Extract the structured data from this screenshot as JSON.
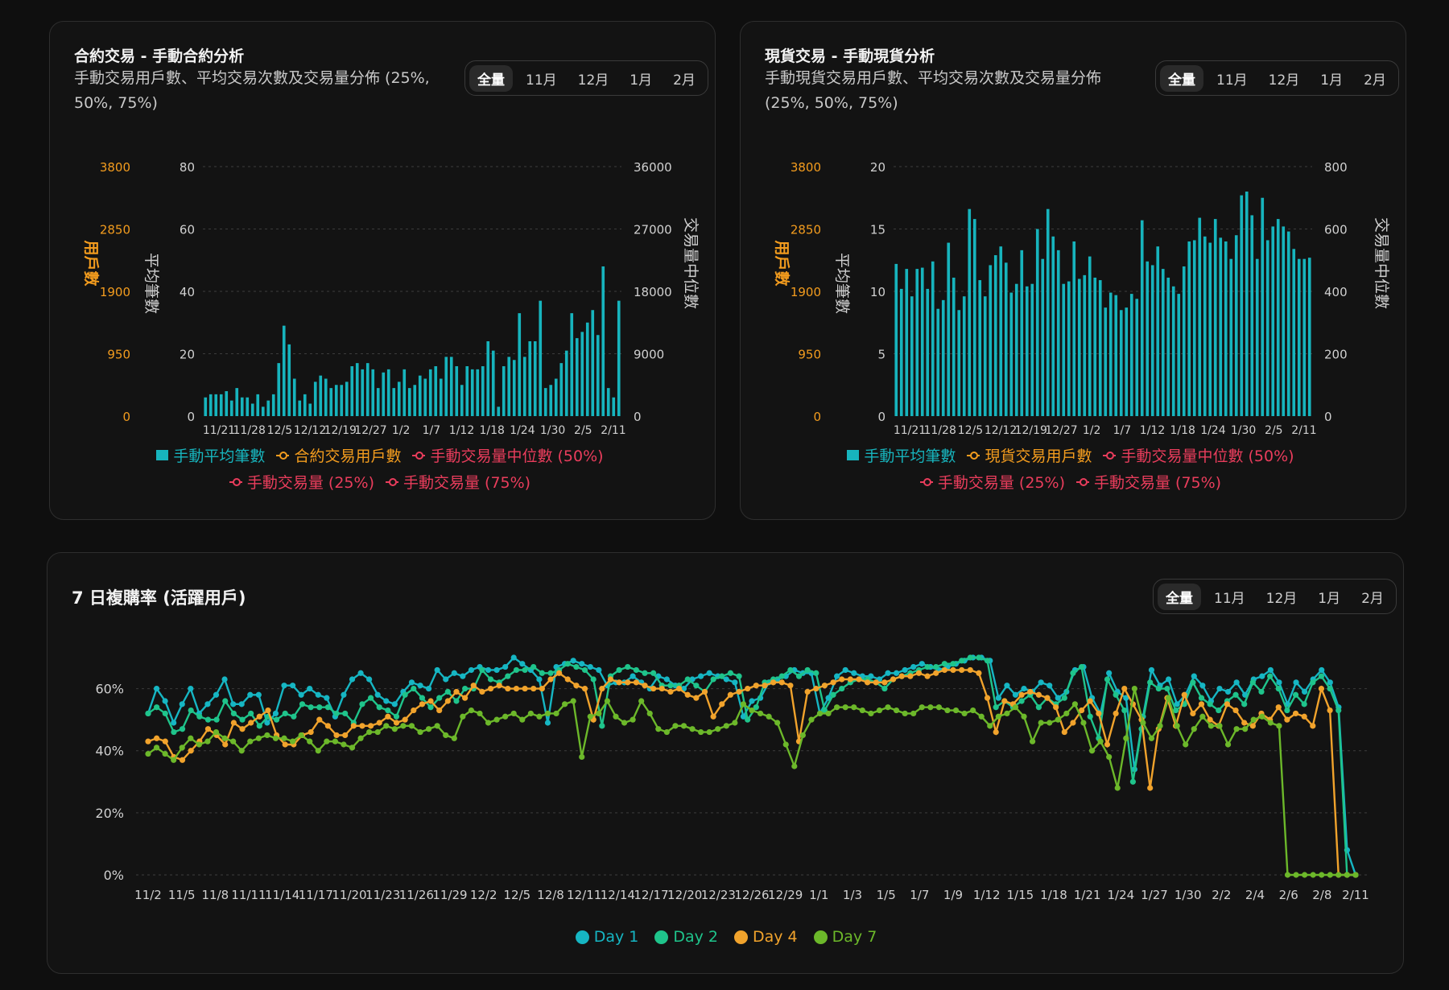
{
  "colors": {
    "bar": "#17b4bd",
    "orange": "#f39c1e",
    "red": "#ea3d5c",
    "grid": "#3c3c3c",
    "day1": "#16b6c3",
    "day2": "#1fc48b",
    "day4": "#f1a32c",
    "day7": "#6cb82a"
  },
  "tabs": [
    "全量",
    "11月",
    "12月",
    "1月",
    "2月"
  ],
  "contract": {
    "title": "合約交易 - 手動合約分析",
    "subtitle": "手動交易用戶數、平均交易次數及交易量分佈 (25%, 50%, 75%)",
    "left_axis_label": "用戶數",
    "mid_axis_label": "平均筆數",
    "right_axis_label": "交易量中位數",
    "legend": [
      "手動平均筆數",
      "合約交易用戶數",
      "手動交易量中位數 (50%)",
      "手動交易量 (25%)",
      "手動交易量 (75%)"
    ]
  },
  "spot": {
    "title": "現貨交易 - 手動現貨分析",
    "subtitle": "手動現貨交易用戶數、平均交易次數及交易量分佈 (25%, 50%, 75%)",
    "left_axis_label": "用戶數",
    "mid_axis_label": "平均筆數",
    "right_axis_label": "交易量中位數",
    "legend": [
      "手動平均筆數",
      "現貨交易用戶數",
      "手動交易量中位數 (50%)",
      "手動交易量 (25%)",
      "手動交易量 (75%)"
    ]
  },
  "repurchase": {
    "title": "7 日複購率 (活躍用戶)",
    "legend": [
      "Day 1",
      "Day 2",
      "Day 4",
      "Day 7"
    ]
  },
  "chart_data": [
    {
      "type": "bar",
      "title": "合約交易 - 手動合約分析",
      "series_name": "手動平均筆數",
      "x_tick_labels": [
        "11/21",
        "11/28",
        "12/5",
        "12/12",
        "12/19",
        "12/27",
        "1/2",
        "1/7",
        "1/12",
        "1/18",
        "1/24",
        "1/30",
        "2/5",
        "2/11"
      ],
      "left_axis_ticks": [
        "3800",
        "2850",
        "1900",
        "950",
        "0"
      ],
      "mid_axis_ticks": [
        "80",
        "60",
        "40",
        "20",
        "0"
      ],
      "right_axis_ticks": [
        "36000",
        "27000",
        "18000",
        "9000",
        "0"
      ],
      "ylim": [
        0,
        80
      ],
      "values": [
        6,
        7,
        7,
        7,
        8,
        5,
        9,
        6,
        6,
        4,
        7,
        3,
        5,
        7,
        17,
        29,
        23,
        12,
        5,
        7,
        4,
        11,
        13,
        12,
        9,
        10,
        10,
        11,
        16,
        17,
        15,
        17,
        15,
        9,
        14,
        15,
        9,
        11,
        15,
        9,
        10,
        13,
        12,
        15,
        16,
        12,
        19,
        19,
        16,
        10,
        16,
        15,
        15,
        16,
        24,
        21,
        3,
        16,
        19,
        18,
        33,
        19,
        24,
        24,
        37,
        9,
        10,
        12,
        17,
        21,
        33,
        25,
        27,
        30,
        34,
        26,
        48,
        9,
        6,
        37
      ],
      "y_at_first_day_is_baseline": true
    },
    {
      "type": "bar",
      "title": "現貨交易 - 手動現貨分析",
      "series_name": "手動平均筆數",
      "x_tick_labels": [
        "11/21",
        "11/28",
        "12/5",
        "12/12",
        "12/19",
        "12/27",
        "1/2",
        "1/7",
        "1/12",
        "1/18",
        "1/24",
        "1/30",
        "2/5",
        "2/11"
      ],
      "left_axis_ticks": [
        "3800",
        "2850",
        "1900",
        "950",
        "0"
      ],
      "mid_axis_ticks": [
        "20",
        "15",
        "10",
        "5",
        "0"
      ],
      "right_axis_ticks": [
        "800",
        "600",
        "400",
        "200",
        "0"
      ],
      "ylim": [
        0,
        20
      ],
      "values": [
        12.2,
        10.2,
        11.8,
        9.6,
        11.8,
        11.9,
        10.2,
        12.4,
        8.6,
        9.3,
        13.9,
        11.1,
        8.5,
        9.6,
        16.6,
        15.8,
        10.9,
        9.6,
        12.1,
        12.9,
        13.6,
        12.3,
        9.9,
        10.6,
        13.3,
        10.4,
        10.6,
        15.0,
        12.6,
        16.6,
        14.4,
        13.3,
        10.6,
        10.8,
        14.0,
        11.0,
        11.3,
        12.8,
        11.1,
        10.9,
        8.7,
        9.9,
        9.7,
        8.5,
        8.7,
        9.8,
        9.4,
        15.7,
        12.4,
        12.1,
        13.6,
        11.8,
        11.1,
        10.4,
        9.8,
        12.0,
        14.0,
        14.1,
        15.9,
        14.4,
        13.9,
        15.8,
        14.3,
        14.0,
        12.6,
        14.5,
        17.7,
        18.0,
        16.1,
        12.6,
        17.5,
        14.1,
        15.2,
        15.8,
        15.2,
        14.8,
        13.4,
        12.6,
        12.6,
        12.7
      ],
      "bars_start_at": "11/17"
    },
    {
      "type": "line",
      "title": "7 日複購率 (活躍用戶)",
      "y_ticks": [
        "60%",
        "40%",
        "20%",
        "0%"
      ],
      "ylim": [
        0,
        0.7
      ],
      "x_tick_labels": [
        "11/2",
        "11/5",
        "11/8",
        "11/11",
        "11/14",
        "11/17",
        "11/20",
        "11/23",
        "11/26",
        "11/29",
        "12/2",
        "12/5",
        "12/8",
        "12/11",
        "12/14",
        "12/17",
        "12/20",
        "12/23",
        "12/26",
        "12/29",
        "1/1",
        "1/3",
        "1/5",
        "1/7",
        "1/9",
        "1/12",
        "1/15",
        "1/18",
        "1/21",
        "1/24",
        "1/27",
        "1/30",
        "2/2",
        "2/4",
        "2/6",
        "2/8",
        "2/11"
      ],
      "series": [
        {
          "name": "Day 1",
          "values": [
            52,
            60,
            56,
            49,
            55,
            60,
            52,
            55,
            58,
            63,
            55,
            55,
            58,
            58,
            49,
            52,
            61,
            61,
            58,
            60,
            58,
            57,
            51,
            58,
            63,
            65,
            63,
            58,
            56,
            55,
            59,
            62,
            61,
            60,
            66,
            63,
            65,
            64,
            66,
            67,
            66,
            66,
            67,
            70,
            68,
            66,
            63,
            49,
            67,
            68,
            69,
            68,
            67,
            66,
            61,
            62,
            62,
            64,
            62,
            60,
            64,
            63,
            61,
            60,
            63,
            64,
            65,
            64,
            63,
            62,
            51,
            56,
            57,
            62,
            63,
            64,
            66,
            65,
            65,
            52,
            57,
            64,
            66,
            65,
            64,
            64,
            63,
            65,
            65,
            66,
            67,
            68,
            67,
            66,
            67,
            68,
            69,
            70,
            70,
            69,
            57,
            61,
            58,
            60,
            59,
            62,
            61,
            57,
            59,
            66,
            67,
            57,
            52,
            65,
            59,
            57,
            34,
            51,
            66,
            61,
            63,
            55,
            58,
            64,
            61,
            56,
            60,
            59,
            62,
            58,
            63,
            64,
            66,
            62,
            55,
            62,
            59,
            63,
            66,
            62,
            54,
            8,
            0
          ]
        },
        {
          "name": "Day 2",
          "values": [
            52,
            54,
            52,
            46,
            47,
            53,
            51,
            50,
            50,
            56,
            52,
            50,
            52,
            48,
            51,
            50,
            52,
            51,
            55,
            54,
            54,
            54,
            52,
            52,
            49,
            55,
            57,
            54,
            53,
            51,
            58,
            60,
            57,
            54,
            57,
            59,
            56,
            60,
            60,
            66,
            63,
            62,
            64,
            66,
            66,
            67,
            65,
            65,
            66,
            68,
            67,
            66,
            63,
            48,
            64,
            66,
            67,
            66,
            65,
            65,
            61,
            61,
            61,
            63,
            61,
            59,
            63,
            64,
            65,
            64,
            50,
            54,
            62,
            63,
            64,
            66,
            64,
            66,
            65,
            53,
            58,
            60,
            62,
            63,
            63,
            62,
            60,
            63,
            64,
            65,
            66,
            67,
            67,
            68,
            68,
            69,
            70,
            70,
            69,
            54,
            56,
            54,
            56,
            58,
            54,
            57,
            55,
            57,
            65,
            67,
            51,
            44,
            63,
            58,
            53,
            30,
            47,
            62,
            60,
            60,
            53,
            55,
            62,
            57,
            55,
            53,
            56,
            58,
            55,
            62,
            59,
            64,
            60,
            53,
            58,
            55,
            62,
            64,
            60,
            53,
            0,
            0
          ]
        },
        {
          "name": "Day 4",
          "values": [
            43,
            44,
            43,
            38,
            37,
            40,
            43,
            47,
            45,
            42,
            49,
            47,
            49,
            51,
            53,
            45,
            42,
            42,
            45,
            46,
            50,
            48,
            45,
            45,
            48,
            48,
            48,
            49,
            51,
            49,
            50,
            53,
            55,
            56,
            53,
            56,
            59,
            57,
            61,
            59,
            60,
            61,
            60,
            60,
            60,
            60,
            60,
            63,
            65,
            63,
            61,
            60,
            50,
            60,
            63,
            62,
            62,
            62,
            61,
            60,
            60,
            59,
            60,
            58,
            57,
            59,
            51,
            55,
            58,
            59,
            60,
            61,
            61,
            62,
            62,
            61,
            43,
            59,
            60,
            61,
            62,
            63,
            63,
            63,
            62,
            62,
            62,
            63,
            64,
            64,
            65,
            64,
            65,
            66,
            66,
            66,
            66,
            65,
            57,
            46,
            56,
            55,
            58,
            59,
            58,
            57,
            54,
            46,
            49,
            53,
            56,
            52,
            42,
            52,
            60,
            55,
            50,
            28,
            47,
            57,
            48,
            58,
            52,
            55,
            50,
            48,
            55,
            53,
            49,
            48,
            52,
            50,
            54,
            50,
            52,
            51,
            48,
            60,
            53,
            0,
            0,
            0
          ]
        },
        {
          "name": "Day 7",
          "values": [
            39,
            41,
            39,
            37,
            41,
            44,
            42,
            43,
            46,
            44,
            43,
            40,
            43,
            44,
            45,
            44,
            44,
            43,
            45,
            43,
            40,
            43,
            43,
            42,
            41,
            44,
            46,
            46,
            48,
            47,
            48,
            48,
            46,
            47,
            48,
            45,
            44,
            51,
            53,
            52,
            49,
            50,
            51,
            52,
            50,
            52,
            51,
            52,
            52,
            55,
            56,
            38,
            51,
            52,
            56,
            51,
            49,
            50,
            56,
            52,
            47,
            46,
            48,
            48,
            47,
            46,
            46,
            47,
            48,
            49,
            55,
            53,
            52,
            51,
            49,
            42,
            35,
            45,
            50,
            52,
            52,
            54,
            54,
            54,
            53,
            52,
            53,
            54,
            53,
            52,
            52,
            54,
            54,
            54,
            53,
            53,
            52,
            53,
            51,
            48,
            51,
            52,
            54,
            51,
            43,
            49,
            49,
            50,
            52,
            55,
            49,
            40,
            43,
            38,
            28,
            44,
            60,
            49,
            44,
            48,
            57,
            48,
            42,
            47,
            51,
            48,
            48,
            42,
            47,
            47,
            50,
            51,
            49,
            48,
            0,
            0,
            0,
            0,
            0,
            0,
            0,
            0,
            0
          ]
        }
      ]
    }
  ]
}
